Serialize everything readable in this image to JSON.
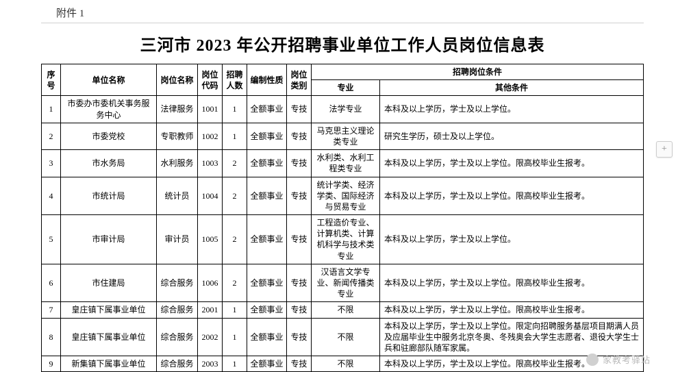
{
  "attachment_label": "附件 1",
  "title": "三河市 2023 年公开招聘事业单位工作人员岗位信息表",
  "headers": {
    "seq": "序号",
    "unit": "单位名称",
    "post": "岗位名称",
    "code": "岗位代码",
    "num": "招聘人数",
    "nature": "编制性质",
    "cat": "岗位类别",
    "cond_group": "招聘岗位条件",
    "major": "专业",
    "other": "其他条件"
  },
  "rows": [
    {
      "seq": "1",
      "unit": "市委办市委机关事务服务中心",
      "post": "法律服务",
      "code": "1001",
      "num": "1",
      "nature": "全额事业",
      "cat": "专技",
      "major": "法学专业",
      "other": "本科及以上学历，学士及以上学位。"
    },
    {
      "seq": "2",
      "unit": "市委党校",
      "post": "专职教师",
      "code": "1002",
      "num": "1",
      "nature": "全额事业",
      "cat": "专技",
      "major": "马克思主义理论类专业",
      "other": "研究生学历，硕士及以上学位。"
    },
    {
      "seq": "3",
      "unit": "市水务局",
      "post": "水利服务",
      "code": "1003",
      "num": "2",
      "nature": "全额事业",
      "cat": "专技",
      "major": "水利类、水利工程类专业",
      "other": "本科及以上学历，学士及以上学位。限高校毕业生报考。"
    },
    {
      "seq": "4",
      "unit": "市统计局",
      "post": "统计员",
      "code": "1004",
      "num": "2",
      "nature": "全额事业",
      "cat": "专技",
      "major": "统计学类、经济学类、国际经济与贸易专业",
      "other": "本科及以上学历，学士及以上学位。限高校毕业生报考。"
    },
    {
      "seq": "5",
      "unit": "市审计局",
      "post": "审计员",
      "code": "1005",
      "num": "2",
      "nature": "全额事业",
      "cat": "专技",
      "major": "工程造价专业、计算机类、计算机科学与技术类专业",
      "other": "本科及以上学历，学士及以上学位。"
    },
    {
      "seq": "6",
      "unit": "市住建局",
      "post": "综合服务",
      "code": "1006",
      "num": "2",
      "nature": "全额事业",
      "cat": "专技",
      "major": "汉语言文学专业、新闻传播类专业",
      "other": "本科及以上学历，学士及以上学位。限高校毕业生报考。"
    },
    {
      "seq": "7",
      "unit": "皇庄镇下属事业单位",
      "post": "综合服务",
      "code": "2001",
      "num": "1",
      "nature": "全额事业",
      "cat": "专技",
      "major": "不限",
      "other": "本科及以上学历，学士及以上学位。限高校毕业生报考。"
    },
    {
      "seq": "8",
      "unit": "皇庄镇下属事业单位",
      "post": "综合服务",
      "code": "2002",
      "num": "1",
      "nature": "全额事业",
      "cat": "专技",
      "major": "不限",
      "other": "本科及以上学历，学士及以上学位。限定向招聘服务基层项目期满人员及应届毕业生中服务北京冬奥、冬残奥会大学生志愿者、退役大学生士兵和驻廊部队随军家属。"
    },
    {
      "seq": "9",
      "unit": "新集镇下属事业单位",
      "post": "综合服务",
      "code": "2003",
      "num": "1",
      "nature": "全额事业",
      "cat": "专技",
      "major": "不限",
      "other": "本科及以上学历，学士及以上学位。限高校毕业生报考。"
    }
  ],
  "side_button": "+",
  "watermark": "家教考驿站"
}
